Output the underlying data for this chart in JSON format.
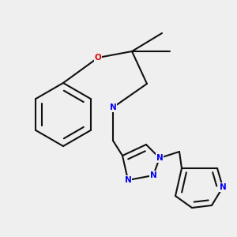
{
  "background_color": "#efefef",
  "bond_color": "#111111",
  "N_color": "#0000ee",
  "O_color": "#dd0000",
  "line_width": 1.5,
  "font_size": 7.5,
  "dpi": 100,
  "figsize": [
    3.0,
    3.0
  ],
  "xlim": [
    0,
    300
  ],
  "ylim": [
    0,
    300
  ]
}
